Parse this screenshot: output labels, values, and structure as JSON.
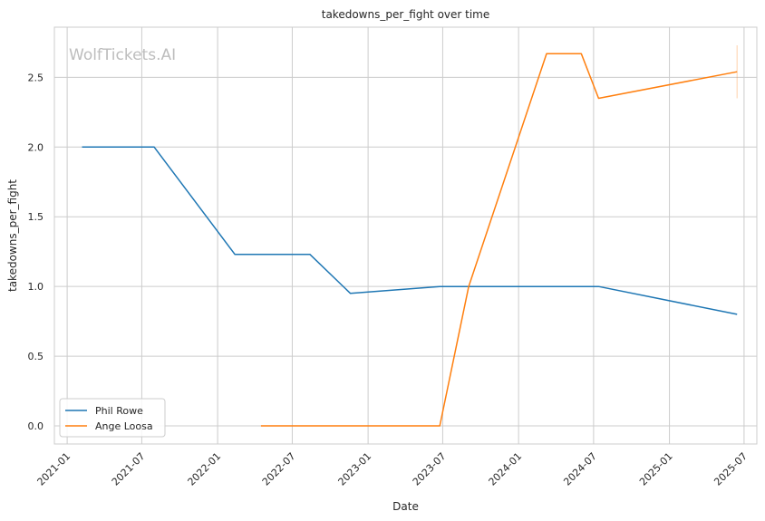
{
  "chart_data": {
    "type": "line",
    "title": "takedowns_per_fight over time",
    "xlabel": "Date",
    "ylabel": "takedowns_per_fight",
    "watermark": "WolfTickets.AI",
    "xlim": [
      "2020-12-01",
      "2025-08-01"
    ],
    "ylim": [
      -0.13,
      2.86
    ],
    "yticks": [
      0.0,
      0.5,
      1.0,
      1.5,
      2.0,
      2.5
    ],
    "ytick_labels": [
      "0.0",
      "0.5",
      "1.0",
      "1.5",
      "2.0",
      "2.5"
    ],
    "xticks": [
      "2021-01-01",
      "2021-07-01",
      "2022-01-01",
      "2022-07-01",
      "2023-01-01",
      "2023-07-01",
      "2024-01-01",
      "2024-07-01",
      "2025-01-01",
      "2025-07-01"
    ],
    "xtick_labels": [
      "2021-01",
      "2021-07",
      "2022-01",
      "2022-07",
      "2023-01",
      "2023-07",
      "2024-01",
      "2024-07",
      "2025-01",
      "2025-07"
    ],
    "grid": true,
    "legend_position": "lower-left",
    "series": [
      {
        "name": "Phil Rowe",
        "color": "#1f77b4",
        "x": [
          "2021-02-06",
          "2021-07-31",
          "2022-02-12",
          "2022-08-13",
          "2022-11-19",
          "2023-06-24",
          "2024-07-13",
          "2025-06-14"
        ],
        "y": [
          2.0,
          2.0,
          1.23,
          1.23,
          0.95,
          1.0,
          1.0,
          0.8
        ]
      },
      {
        "name": "Ange Loosa",
        "color": "#ff7f0e",
        "x": [
          "2022-04-16",
          "2023-06-24",
          "2023-09-02",
          "2024-03-09",
          "2024-06-01",
          "2024-07-13",
          "2025-06-14"
        ],
        "y": [
          0.0,
          0.0,
          1.0,
          2.67,
          2.67,
          2.35,
          2.54
        ]
      }
    ],
    "annotations": [
      {
        "type": "error-bar",
        "x": "2025-06-14",
        "low": 2.35,
        "high": 2.73,
        "color": "#ff7f0e"
      }
    ]
  }
}
